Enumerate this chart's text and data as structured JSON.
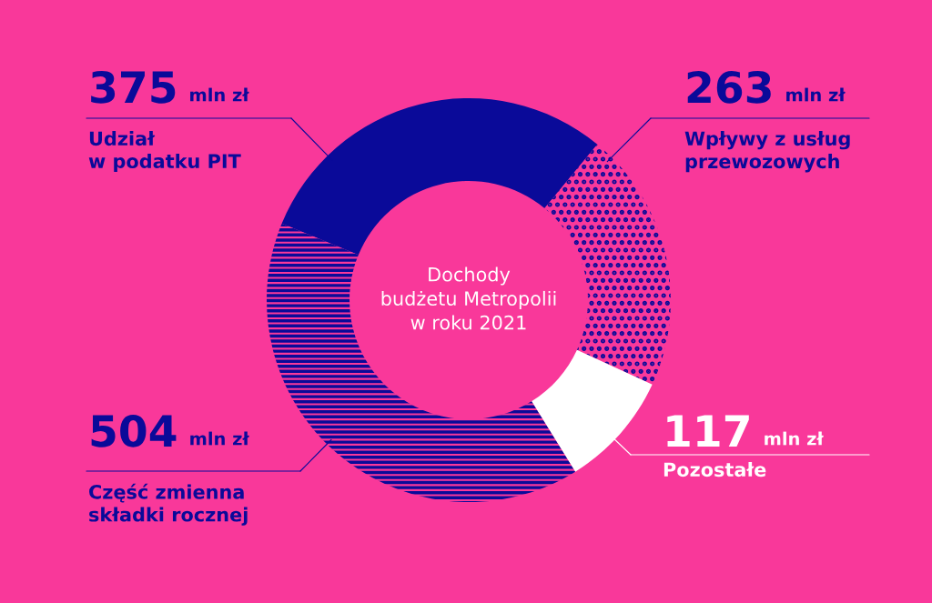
{
  "chart_data": {
    "type": "donut",
    "title": "Dochody\nbudżetu Metropolii\nw roku 2021",
    "categories": [
      "Udział\nw podatku PIT",
      "Wpływy z usług\nprzewozowych",
      "Pozostałe",
      "Część zmienna\nskładki rocznej"
    ],
    "values": [
      375,
      263,
      117,
      504
    ],
    "value_labels": [
      "375 mln zł",
      "263 mln zł",
      "117 mln zł",
      "504 mln zł"
    ],
    "colors": [
      "#0a0a99",
      "#0a0a99",
      "#ffffff",
      "#0a0a99"
    ]
  }
}
